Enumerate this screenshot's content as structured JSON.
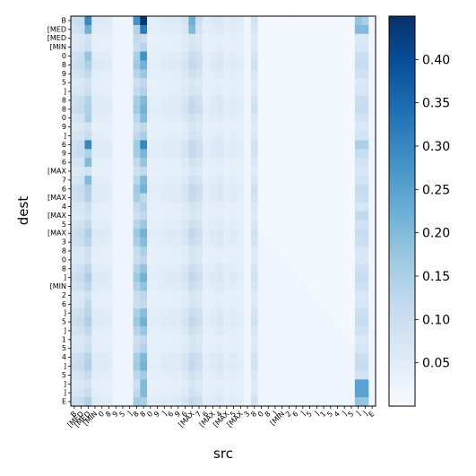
{
  "chart_data": {
    "type": "heatmap",
    "title": "",
    "xlabel": "src",
    "ylabel": "dest",
    "x_categories": [
      "B",
      "[MED",
      "[MED",
      "[MIN",
      "0",
      "8",
      "9",
      "5",
      "]",
      "8",
      "8",
      "0",
      "9",
      "]",
      "6",
      "9",
      "6",
      "[MAX",
      "7",
      "6",
      "[MAX",
      "4",
      "[MAX",
      "5",
      "[MAX",
      "3",
      "8",
      "0",
      "8",
      "]",
      "[MIN",
      "2",
      "6",
      "]",
      "5",
      "]",
      "1",
      "5",
      "4",
      "]",
      "5",
      "]",
      "]",
      "E"
    ],
    "y_categories": [
      "B",
      "[MED",
      "[MED",
      "[MIN",
      "0",
      "8",
      "9",
      "5",
      "]",
      "8",
      "8",
      "0",
      "9",
      "]",
      "6",
      "9",
      "6",
      "[MAX",
      "7",
      "6",
      "[MAX",
      "4",
      "[MAX",
      "5",
      "[MAX",
      "3",
      "8",
      "0",
      "8",
      "]",
      "[MIN",
      "2",
      "6",
      "]",
      "5",
      "]",
      "1",
      "5",
      "4",
      "]",
      "5",
      "]",
      "]",
      "E"
    ],
    "colorbar": {
      "min": 0.0,
      "max": 0.45,
      "ticks": [
        0.05,
        0.1,
        0.15,
        0.2,
        0.25,
        0.3,
        0.35,
        0.4
      ],
      "tick_labels": [
        "0.05",
        "0.10",
        "0.15",
        "0.20",
        "0.25",
        "0.30",
        "0.35",
        "0.40"
      ],
      "colormap": "Blues"
    },
    "base_value": 0.02,
    "column_weights": {
      "0": 0.08,
      "1": 0.09,
      "2": 0.13,
      "3": 0.04,
      "4": 0.04,
      "5": 0.035,
      "9": 0.15,
      "10": 0.2,
      "11": 0.03,
      "12": 0.03,
      "13": 0.035,
      "14": 0.04,
      "15": 0.04,
      "16": 0.06,
      "17": 0.1,
      "18": 0.08,
      "19": 0.03,
      "20": 0.04,
      "21": 0.05,
      "22": 0.03,
      "23": 0.04,
      "24": 0.03,
      "26": 0.07,
      "41": 0.09,
      "42": 0.09
    },
    "highlight_cells": [
      {
        "row": 0,
        "col": 2,
        "value": 0.3
      },
      {
        "row": 0,
        "col": 9,
        "value": 0.28
      },
      {
        "row": 0,
        "col": 10,
        "value": 0.44
      },
      {
        "row": 0,
        "col": 17,
        "value": 0.22
      },
      {
        "row": 0,
        "col": 41,
        "value": 0.18
      },
      {
        "row": 0,
        "col": 42,
        "value": 0.15
      },
      {
        "row": 1,
        "col": 2,
        "value": 0.22
      },
      {
        "row": 1,
        "col": 10,
        "value": 0.32
      },
      {
        "row": 1,
        "col": 17,
        "value": 0.2
      },
      {
        "row": 1,
        "col": 41,
        "value": 0.2
      },
      {
        "row": 1,
        "col": 42,
        "value": 0.2
      },
      {
        "row": 2,
        "col": 9,
        "value": 0.12
      },
      {
        "row": 2,
        "col": 10,
        "value": 0.1
      },
      {
        "row": 4,
        "col": 2,
        "value": 0.18
      },
      {
        "row": 4,
        "col": 10,
        "value": 0.28
      },
      {
        "row": 11,
        "col": 2,
        "value": 0.15
      },
      {
        "row": 11,
        "col": 10,
        "value": 0.2
      },
      {
        "row": 14,
        "col": 2,
        "value": 0.3
      },
      {
        "row": 14,
        "col": 10,
        "value": 0.3
      },
      {
        "row": 14,
        "col": 41,
        "value": 0.15
      },
      {
        "row": 14,
        "col": 42,
        "value": 0.15
      },
      {
        "row": 16,
        "col": 2,
        "value": 0.2
      },
      {
        "row": 16,
        "col": 10,
        "value": 0.18
      },
      {
        "row": 18,
        "col": 2,
        "value": 0.2
      },
      {
        "row": 18,
        "col": 10,
        "value": 0.2
      },
      {
        "row": 20,
        "col": 10,
        "value": 0.12
      },
      {
        "row": 20,
        "col": 41,
        "value": 0.1
      },
      {
        "row": 22,
        "col": 10,
        "value": 0.12
      },
      {
        "row": 22,
        "col": 41,
        "value": 0.12
      },
      {
        "row": 22,
        "col": 42,
        "value": 0.12
      },
      {
        "row": 26,
        "col": 10,
        "value": 0.15
      },
      {
        "row": 32,
        "col": 2,
        "value": 0.12
      },
      {
        "row": 32,
        "col": 10,
        "value": 0.12
      },
      {
        "row": 41,
        "col": 10,
        "value": 0.2
      },
      {
        "row": 41,
        "col": 41,
        "value": 0.25
      },
      {
        "row": 41,
        "col": 42,
        "value": 0.25
      },
      {
        "row": 42,
        "col": 10,
        "value": 0.2
      },
      {
        "row": 42,
        "col": 41,
        "value": 0.25
      },
      {
        "row": 42,
        "col": 42,
        "value": 0.25
      },
      {
        "row": 43,
        "col": 10,
        "value": 0.15
      },
      {
        "row": 43,
        "col": 41,
        "value": 0.18
      },
      {
        "row": 43,
        "col": 42,
        "value": 0.18
      }
    ]
  }
}
